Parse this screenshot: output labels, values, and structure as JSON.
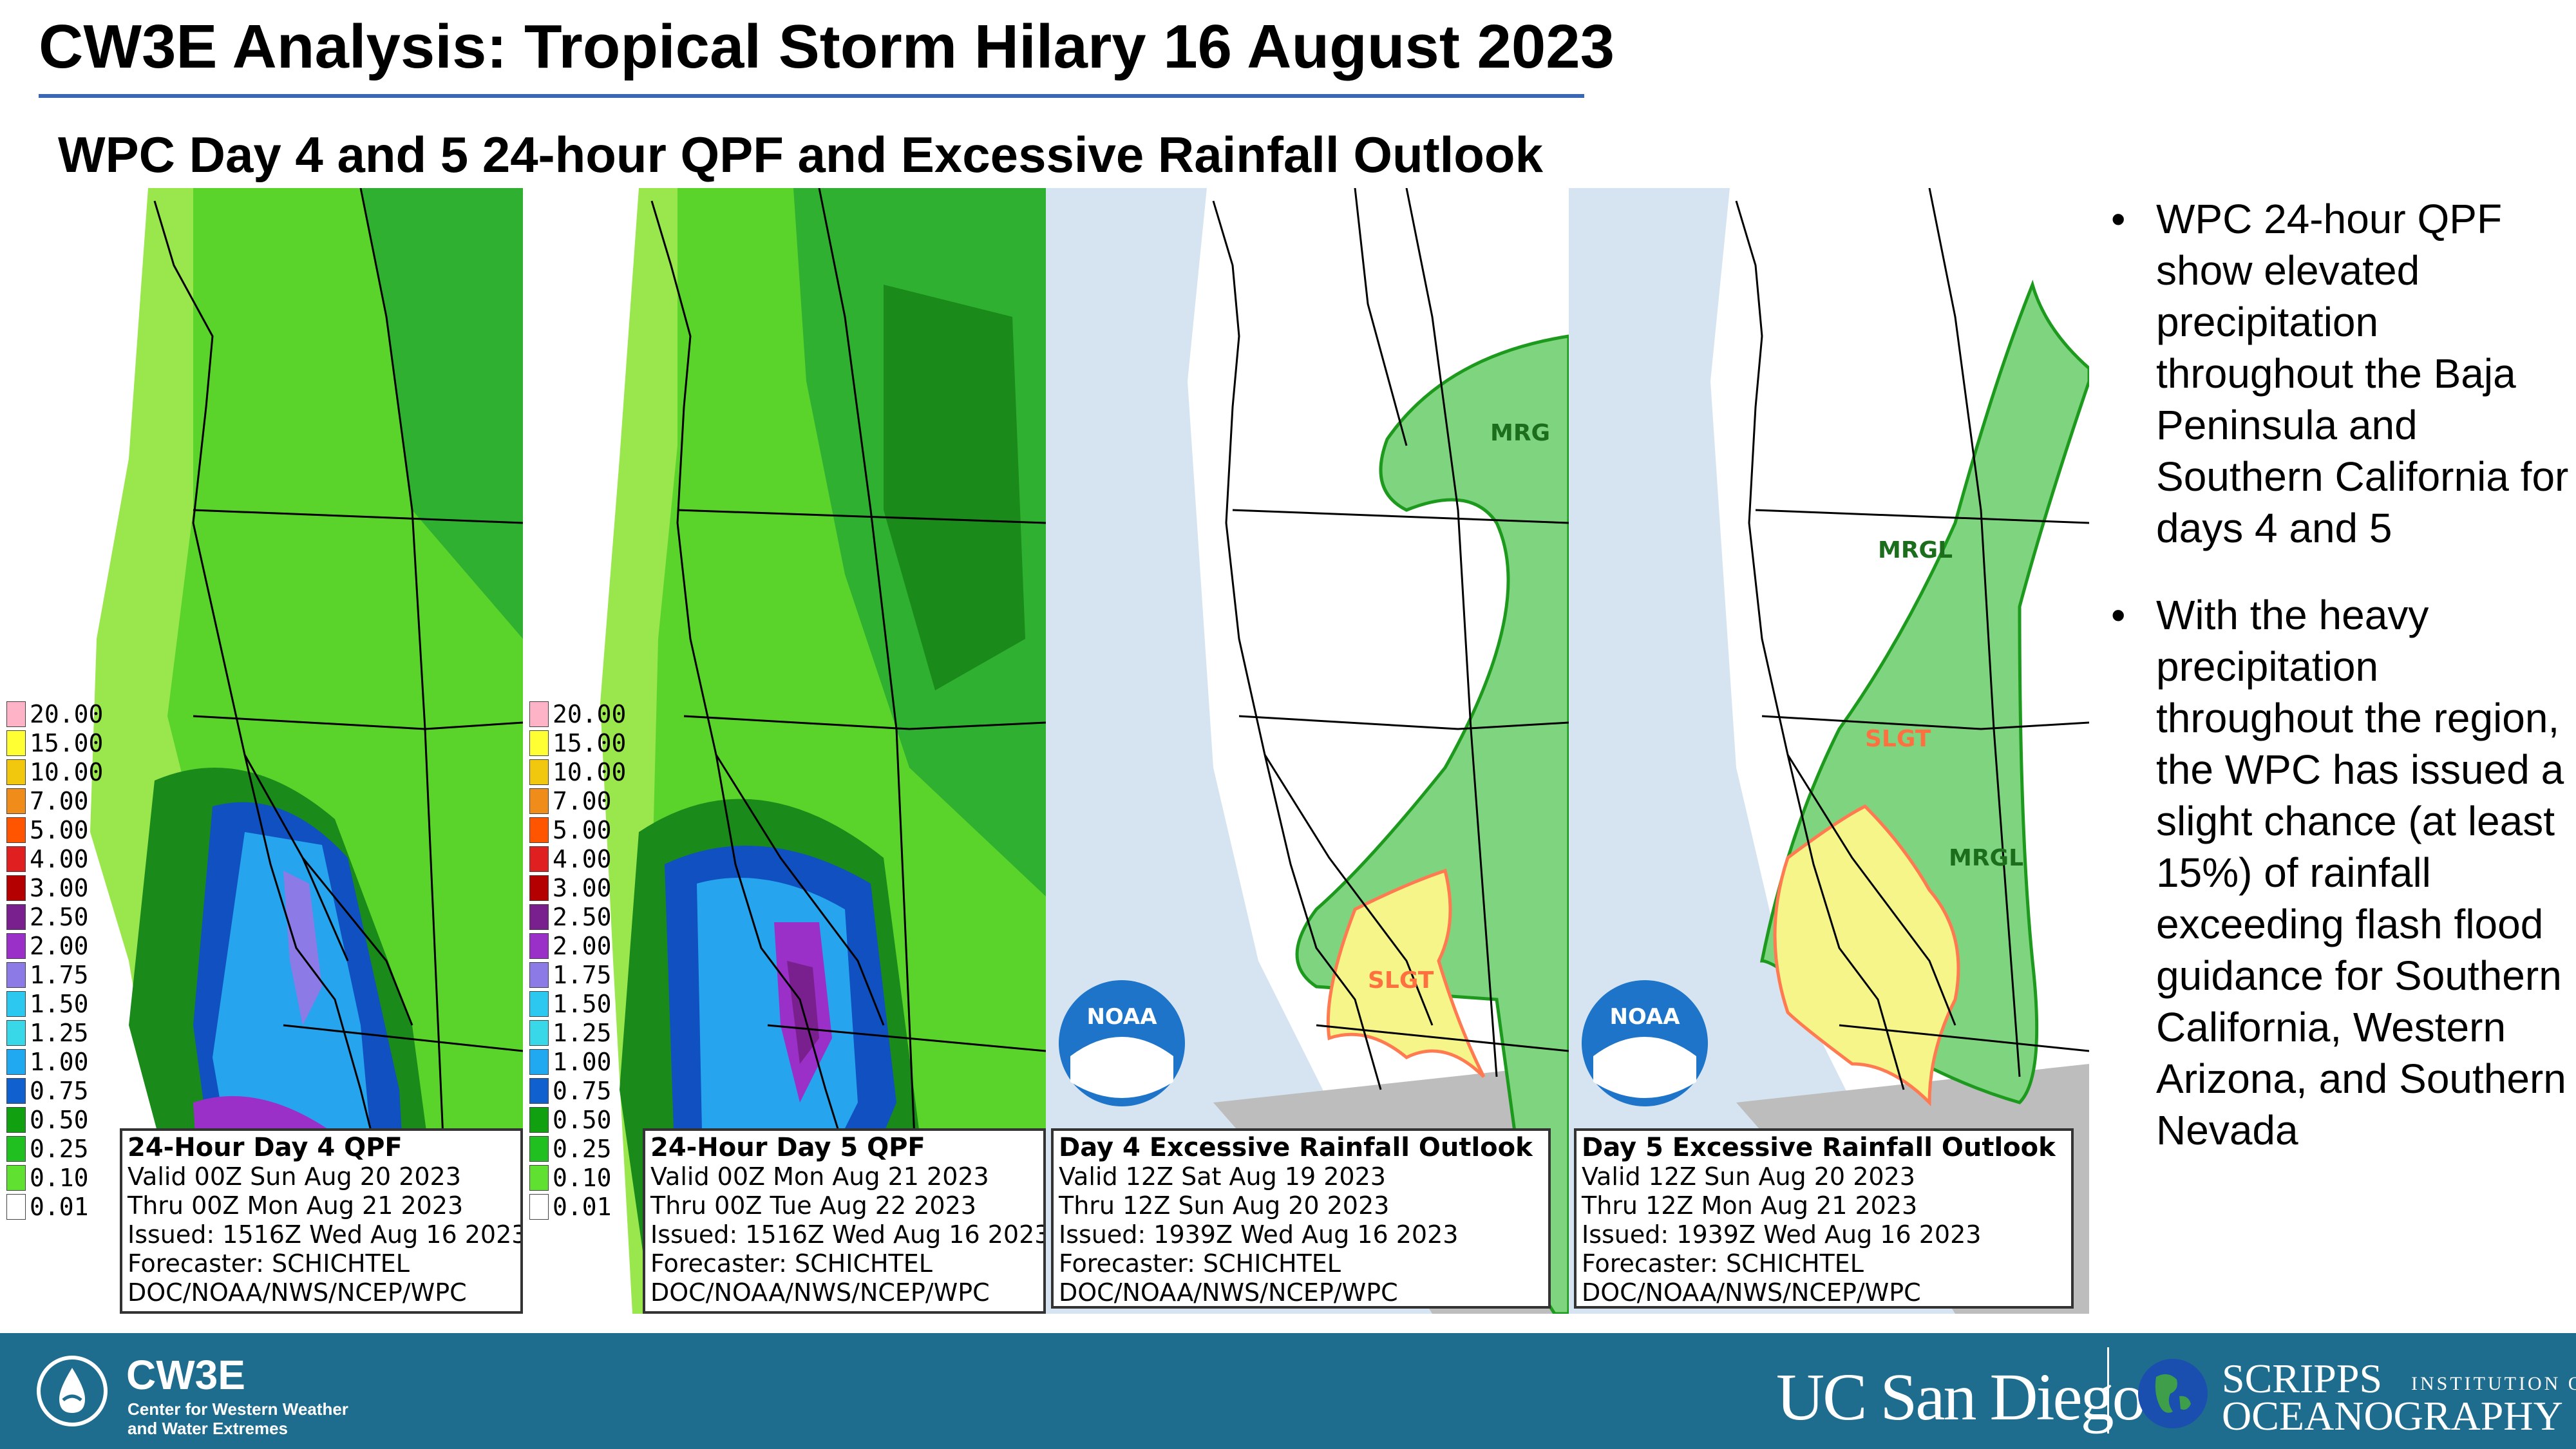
{
  "title": "CW3E Analysis: Tropical Storm Hilary 16 August 2023",
  "subtitle": "WPC Day 4 and 5 24-hour QPF and Excessive Rainfall Outlook",
  "colors": {
    "title_rule": "#3a67b4",
    "footer_bg": "#1f6d8e",
    "ocean": "#d6e4f2",
    "mexico_land": "#bdbdbd",
    "mrgl_fill": "#7fd57f",
    "mrgl_line": "#1d9a1d",
    "slgt_fill": "#f5f58a",
    "slgt_line": "#ff7a50"
  },
  "qpf_legend": {
    "labels": [
      "20.00",
      "15.00",
      "10.00",
      "7.00",
      "5.00",
      "4.00",
      "3.00",
      "2.50",
      "2.00",
      "1.75",
      "1.50",
      "1.25",
      "1.00",
      "0.75",
      "0.50",
      "0.25",
      "0.10",
      "0.01"
    ],
    "colors": [
      "#ffb3c6",
      "#ffff33",
      "#f2c80f",
      "#f08c1a",
      "#ff5500",
      "#e02020",
      "#b40000",
      "#7a1f8e",
      "#9b30c8",
      "#8c7ae6",
      "#2cc8f0",
      "#38d8e8",
      "#20a8f0",
      "#1060d0",
      "#10a010",
      "#20c020",
      "#60e030",
      "#ffffff"
    ]
  },
  "panels": [
    {
      "kind": "qpf",
      "box_lines": [
        "24-Hour Day 4 QPF",
        "Valid 00Z Sun Aug 20 2023",
        "Thru 00Z Mon Aug 21 2023",
        "Issued: 1516Z Wed Aug 16 2023",
        "Forecaster: SCHICHTEL",
        "DOC/NOAA/NWS/NCEP/WPC"
      ]
    },
    {
      "kind": "qpf",
      "box_lines": [
        "24-Hour Day 5 QPF",
        "Valid 00Z Mon Aug 21 2023",
        "Thru 00Z Tue Aug 22 2023",
        "Issued: 1516Z Wed Aug 16 2023",
        "Forecaster: SCHICHTEL",
        "DOC/NOAA/NWS/NCEP/WPC"
      ]
    },
    {
      "kind": "ero",
      "risk_labels": [
        "MRG",
        "SLGT"
      ],
      "box_lines": [
        "Day 4 Excessive Rainfall Outlook",
        "Valid 12Z Sat Aug 19 2023",
        "Thru 12Z Sun Aug 20 2023",
        "Issued: 1939Z Wed Aug 16 2023",
        "Forecaster: SCHICHTEL",
        "DOC/NOAA/NWS/NCEP/WPC"
      ]
    },
    {
      "kind": "ero",
      "risk_labels": [
        "MRGL",
        "SLGT",
        "MRGL"
      ],
      "box_lines": [
        "Day 5 Excessive Rainfall Outlook",
        "Valid 12Z Sun Aug 20 2023",
        "Thru 12Z Mon Aug 21 2023",
        "Issued: 1939Z Wed Aug 16 2023",
        "Forecaster: SCHICHTEL",
        "DOC/NOAA/NWS/NCEP/WPC"
      ]
    }
  ],
  "noaa_logo_text": "NOAA",
  "bullets": [
    "WPC 24-hour QPF show elevated precipitation throughout the Baja Peninsula and Southern California for days 4 and 5",
    "With the heavy precipitation throughout the region, the WPC has issued a slight chance (at least 15%) of rainfall exceeding flash flood guidance for Southern California, Western Arizona, and Southern Nevada"
  ],
  "bullet_symbol": "•",
  "footer": {
    "cw3e_name": "CW3E",
    "cw3e_tagline_1": "Center for Western Weather",
    "cw3e_tagline_2": "and Water Extremes",
    "ucsd": "UC San Diego",
    "scripps_1": "SCRIPPS",
    "scripps_1b": "INSTITUTION OF",
    "scripps_2": "OCEANOGRAPHY"
  }
}
